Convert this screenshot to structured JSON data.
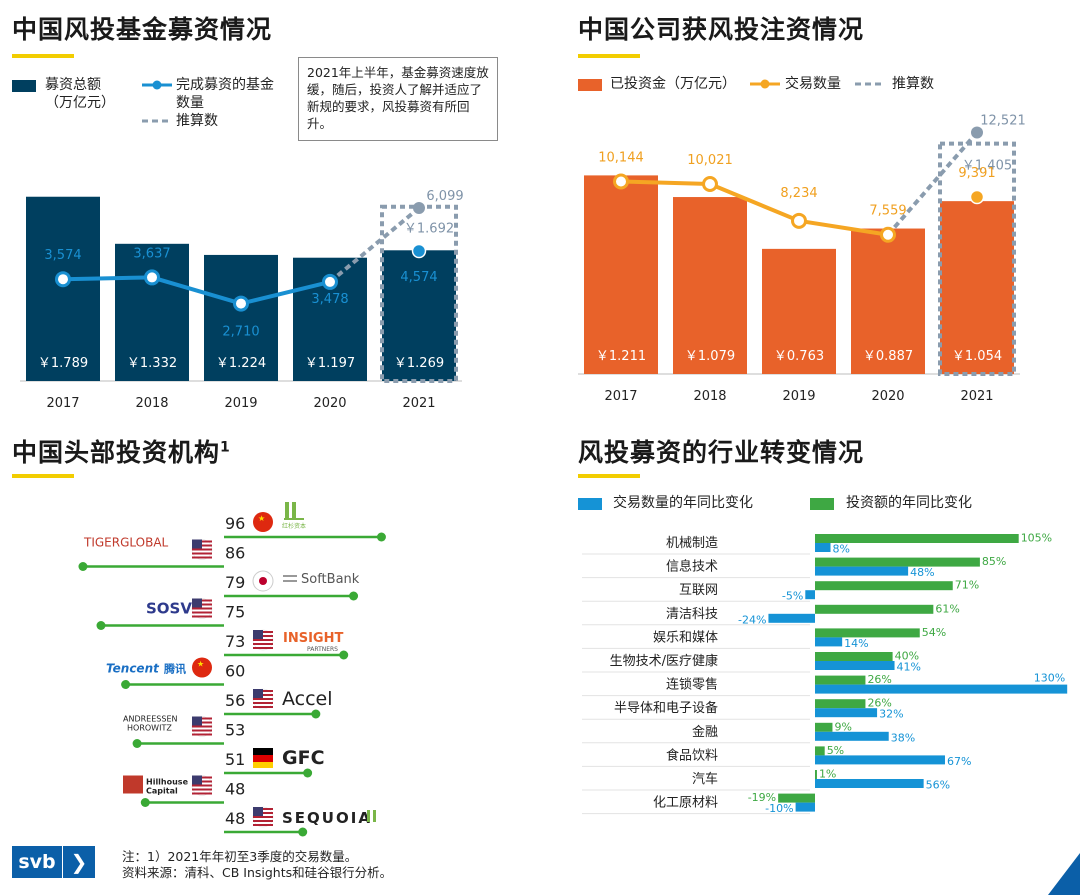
{
  "panels": {
    "p1_title": "中国风投基金募资情况",
    "p2_title": "中国公司获风投注资情况",
    "p3_title": "中国头部投资机构",
    "p3_sup": "1",
    "p4_title": "风投募资的行业转变情况"
  },
  "p1": {
    "legend_bar": "募资总额",
    "legend_bar2": "（万亿元）",
    "legend_line": "完成募资的基金",
    "legend_line2": "数量",
    "legend_est": "推算数",
    "note": "2021年上半年，基金募资速度放缓，随后，投资人了解并适应了新规的要求，风投募资有所回升。"
  },
  "p2": {
    "legend_bar": "已投资金（万亿元）",
    "legend_line": "交易数量",
    "legend_est": "推算数"
  },
  "p4": {
    "legend_a": "交易数量的年同比变化",
    "legend_b": "投资额的年同比变化"
  },
  "chart_data": [
    {
      "type": "bar",
      "title": "中国风投基金募资情况",
      "categories": [
        "2017",
        "2018",
        "2019",
        "2020",
        "2021"
      ],
      "series": [
        {
          "name": "募资总额（万亿元）",
          "values": [
            1.789,
            1.332,
            1.224,
            1.197,
            1.269
          ],
          "labels": [
            "￥1.789",
            "￥1.332",
            "￥1.224",
            "￥1.197",
            "￥1.269"
          ]
        },
        {
          "name": "完成募资的基金数量",
          "values": [
            3574,
            3637,
            2710,
            3478,
            4574
          ],
          "labels": [
            "3,574",
            "3,637",
            "2,710",
            "3,478",
            "4,574"
          ]
        },
        {
          "name": "推算数",
          "values": [
            null,
            null,
            null,
            3478,
            6099
          ],
          "labels": [
            "",
            "",
            "",
            "",
            "6,099"
          ],
          "bar_label": "￥1.692",
          "bar_value": 1.692
        }
      ],
      "colors": {
        "bar": "#003f5f",
        "line": "#1990d2",
        "est": "#8a9cae",
        "est_text": "#7f93a8"
      }
    },
    {
      "type": "bar",
      "title": "中国公司获风投注资情况",
      "categories": [
        "2017",
        "2018",
        "2019",
        "2020",
        "2021"
      ],
      "series": [
        {
          "name": "已投资金（万亿元）",
          "values": [
            1.211,
            1.079,
            0.763,
            0.887,
            1.054
          ],
          "labels": [
            "￥1.211",
            "￥1.079",
            "￥0.763",
            "￥0.887",
            "￥1.054"
          ]
        },
        {
          "name": "交易数量",
          "values": [
            10144,
            10021,
            8234,
            7559,
            9391
          ],
          "labels": [
            "10,144",
            "10,021",
            "8,234",
            "7,559",
            "9,391"
          ]
        },
        {
          "name": "推算数",
          "values": [
            null,
            null,
            null,
            7559,
            12521
          ],
          "labels": [
            "",
            "",
            "",
            "",
            "12,521"
          ],
          "bar_label": "￥1.405",
          "bar_value": 1.405
        }
      ],
      "colors": {
        "bar": "#e8622a",
        "line": "#f5a623",
        "est": "#8a9cae",
        "est_text": "#7f93a8"
      }
    },
    {
      "type": "bar",
      "title": "中国头部投资机构",
      "categories": [
        "红杉资本",
        "TIGERGLOBAL",
        "SoftBank",
        "SOSV",
        "INSIGHT PARTNERS",
        "Tencent 腾讯",
        "Accel",
        "ANDREESSEN HOROWITZ",
        "GFC",
        "Hillhouse Capital",
        "SEQUOIA"
      ],
      "values": [
        96,
        86,
        79,
        75,
        73,
        60,
        56,
        53,
        51,
        48,
        48
      ],
      "labels": [
        "96",
        "86",
        "79",
        "75",
        "73",
        "60",
        "56",
        "53",
        "51",
        "48",
        "48"
      ],
      "flags": [
        "cn",
        "us",
        "jp",
        "us",
        "us",
        "cn",
        "us",
        "us",
        "de",
        "us",
        "us"
      ],
      "colors": {
        "line": "#3aa935"
      }
    },
    {
      "type": "bar",
      "title": "风投募资的行业转变情况",
      "categories": [
        "机械制造",
        "信息技术",
        "互联网",
        "清洁科技",
        "娱乐和媒体",
        "生物技术/医疗健康",
        "连锁零售",
        "半导体和电子设备",
        "金融",
        "食品饮料",
        "汽车",
        "化工原材料"
      ],
      "series": [
        {
          "name": "投资额的年同比变化",
          "values": [
            105,
            85,
            71,
            61,
            54,
            40,
            26,
            26,
            9,
            5,
            1,
            -19
          ],
          "labels": [
            "105%",
            "85%",
            "71%",
            "61%",
            "54%",
            "40%",
            "26%",
            "26%",
            "9%",
            "5%",
            "1%",
            "-19%"
          ]
        },
        {
          "name": "交易数量的年同比变化",
          "values": [
            8,
            48,
            -5,
            -24,
            14,
            41,
            130,
            32,
            38,
            67,
            56,
            -10
          ],
          "labels": [
            "8%",
            "48%",
            "-5%",
            "-24%",
            "14%",
            "41%",
            "130%",
            "32%",
            "38%",
            "67%",
            "56%",
            "-10%"
          ]
        }
      ],
      "colors": {
        "green": "#3ea843",
        "blue": "#1593d6"
      }
    }
  ],
  "logos": {
    "hongshan_sub": "红杉资本",
    "tiger": "TIGERGLOBAL",
    "softbank": "SoftBank",
    "sosv": "SOSV",
    "insight": "INSIGHT",
    "insight_sub": "PARTNERS",
    "tencent": "Tencent",
    "tencent_cn": "腾讯",
    "accel": "Accel",
    "a16z_1": "ANDREESSEN",
    "a16z_2": "HOROWITZ",
    "gfc": "GFC",
    "hillhouse_1": "Hillhouse",
    "hillhouse_2": "Capital",
    "sequoia": "SEQUOIA"
  },
  "footer": {
    "line1": "注：1）2021年年初至3季度的交易数量。",
    "line2": "资料来源：清科、CB Insights和硅谷银行分析。",
    "brand": "svb",
    "arrow": "❯"
  }
}
